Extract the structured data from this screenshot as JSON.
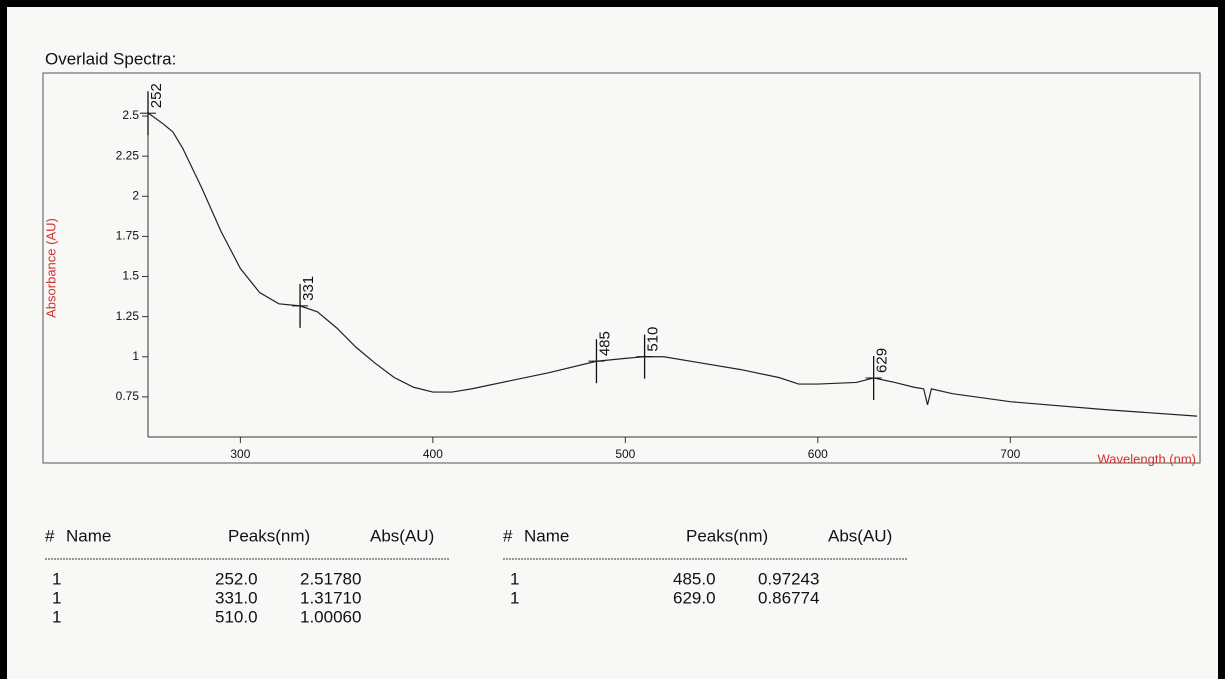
{
  "chart_data": {
    "type": "line",
    "title": "Overlaid Spectra:",
    "y_label": "Absorbance (AU)",
    "x_label": "Wavelength (nm)",
    "axis_label_color": "#d0312d",
    "color": "#222222",
    "x": [
      252,
      260,
      265,
      270,
      280,
      290,
      300,
      310,
      320,
      331,
      340,
      350,
      360,
      370,
      380,
      390,
      400,
      410,
      420,
      440,
      460,
      485,
      500,
      510,
      520,
      540,
      560,
      580,
      590,
      600,
      620,
      629,
      640,
      650,
      655,
      657,
      659,
      670,
      700,
      750,
      797
    ],
    "values": [
      2.52,
      2.45,
      2.4,
      2.3,
      2.05,
      1.78,
      1.55,
      1.4,
      1.33,
      1.317,
      1.28,
      1.18,
      1.06,
      0.96,
      0.87,
      0.81,
      0.78,
      0.78,
      0.8,
      0.85,
      0.9,
      0.972,
      0.99,
      1.0006,
      1.0,
      0.96,
      0.92,
      0.87,
      0.83,
      0.83,
      0.84,
      0.868,
      0.84,
      0.81,
      0.8,
      0.7,
      0.8,
      0.77,
      0.72,
      0.67,
      0.63
    ],
    "peaks": {
      "x": [
        252,
        331,
        485,
        510,
        629
      ],
      "values": [
        2.5178,
        1.3171,
        0.97243,
        1.0006,
        0.86774
      ]
    },
    "xlim": [
      252,
      797
    ],
    "xticks": [
      300,
      400,
      500,
      600,
      700
    ],
    "ylim": [
      0.5,
      2.6
    ],
    "yticks": [
      0.75,
      1,
      1.25,
      1.5,
      1.75,
      2,
      2.25,
      2.5
    ]
  },
  "tables": [
    {
      "header": [
        "#",
        "Name",
        "Peaks(nm)",
        "Abs(AU)"
      ],
      "rows": [
        [
          "1",
          "252.0",
          "2.51780"
        ],
        [
          "1",
          "331.0",
          "1.31710"
        ],
        [
          "1",
          "510.0",
          "1.00060"
        ]
      ]
    },
    {
      "header": [
        "#",
        "Name",
        "Peaks(nm)",
        "Abs(AU)"
      ],
      "rows": [
        [
          "1",
          "485.0",
          "0.97243"
        ],
        [
          "1",
          "629.0",
          "0.86774"
        ]
      ]
    }
  ]
}
